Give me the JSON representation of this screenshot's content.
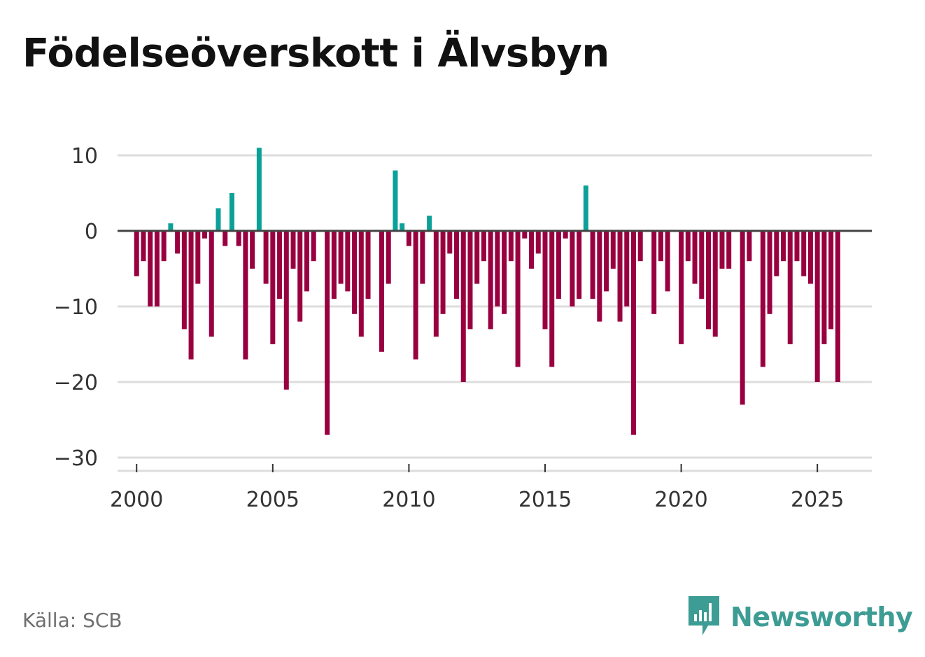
{
  "title": "Födelseöverskott i Älvsbyn",
  "source": "Källa: SCB",
  "brand": {
    "name": "Newsworthy",
    "icon": "newsworthy-logo-icon"
  },
  "colors": {
    "positive": "#0ba199",
    "negative": "#990040",
    "grid": "#dddddd",
    "zero_line": "#444444",
    "brand": "#3d9c94"
  },
  "chart_data": {
    "type": "bar",
    "title": "Födelseöverskott i Älvsbyn",
    "xlabel": "",
    "ylabel": "",
    "ylim": [
      -30,
      12
    ],
    "yticks": [
      10,
      0,
      -10,
      -20,
      -30
    ],
    "ytick_labels": [
      "10",
      "0",
      "−10",
      "−20",
      "−30"
    ],
    "xlim": [
      1999.3,
      2027.0
    ],
    "xticks": [
      2000,
      2005,
      2010,
      2015,
      2020,
      2025
    ],
    "xtick_labels": [
      "2000",
      "2005",
      "2010",
      "2015",
      "2020",
      "2025"
    ],
    "grid": true,
    "legend": "none",
    "frequency": "monthly (approx.)",
    "start": 2000.0,
    "step": 0.25,
    "values": [
      -6,
      -4,
      -10,
      -10,
      -4,
      1,
      -3,
      -13,
      -17,
      -7,
      -1,
      -14,
      3,
      -2,
      5,
      -2,
      -17,
      -5,
      11,
      -7,
      -15,
      -9,
      -21,
      -5,
      -12,
      -8,
      -4,
      0,
      -27,
      -9,
      -7,
      -8,
      -11,
      -14,
      -9,
      0,
      -16,
      -7,
      8,
      1,
      -2,
      -17,
      -7,
      2,
      -14,
      -11,
      -3,
      -9,
      -20,
      -13,
      -7,
      -4,
      -13,
      -10,
      -11,
      -4,
      -18,
      -1,
      -5,
      -3,
      -13,
      -18,
      -9,
      -1,
      -10,
      -9,
      6,
      -9,
      -12,
      -8,
      -5,
      -12,
      -10,
      -27,
      -4,
      0,
      -11,
      -4,
      -8,
      0,
      -15,
      -4,
      -7,
      -9,
      -13,
      -14,
      -5,
      -5,
      0,
      -23,
      -4,
      0,
      -18,
      -11,
      -6,
      -4,
      -15,
      -4,
      -6,
      -7,
      -20,
      -15,
      -13,
      -20
    ]
  }
}
